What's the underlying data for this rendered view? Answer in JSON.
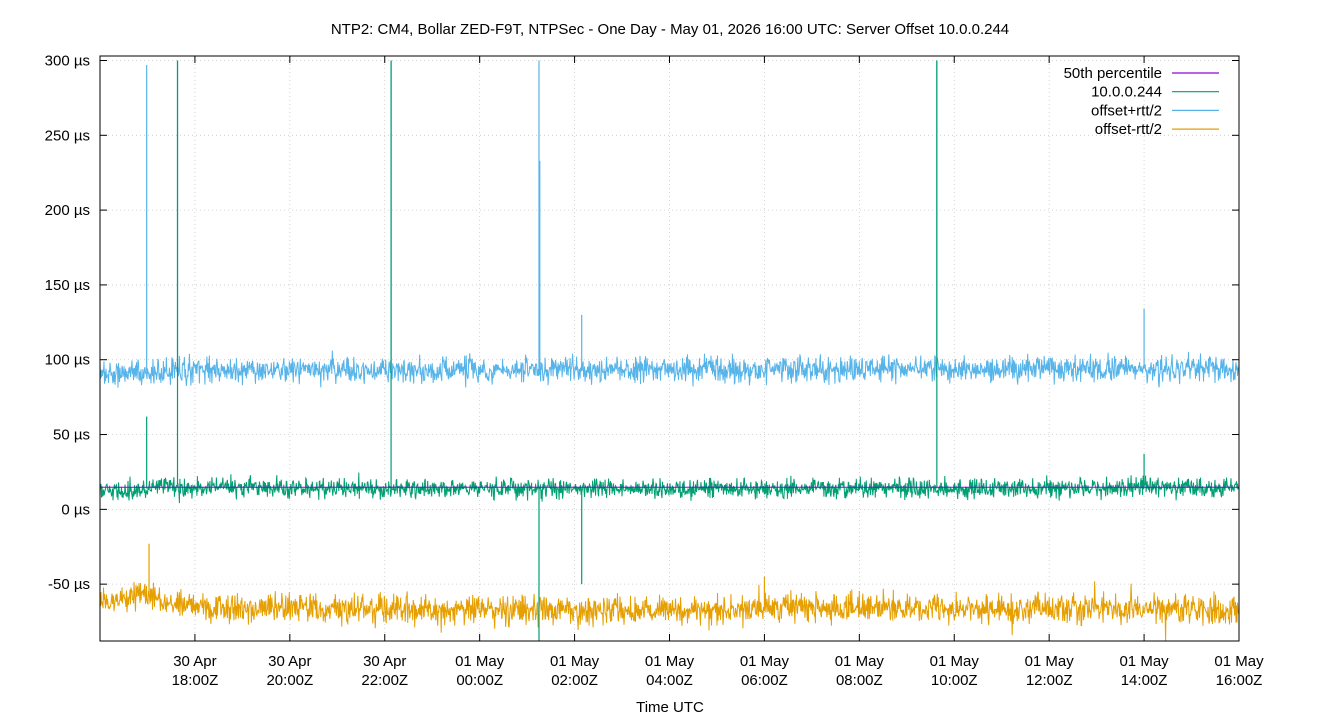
{
  "chart_data": {
    "type": "line",
    "title": "NTP2: CM4, Bollar ZED-F9T, NTPSec - One Day - May 01, 2026 16:00 UTC: Server Offset 10.0.0.244",
    "xlabel": "Time UTC",
    "ylabel": "",
    "y_unit": "µs",
    "x_range": [
      "2026-04-30T16:00Z",
      "2026-05-01T16:00Z"
    ],
    "ylim": [
      -88,
      303
    ],
    "grid": true,
    "legend_position": "top-right",
    "y_ticks": [
      {
        "value": 300,
        "label": "300 µs"
      },
      {
        "value": 250,
        "label": "250 µs"
      },
      {
        "value": 200,
        "label": "200 µs"
      },
      {
        "value": 150,
        "label": "150 µs"
      },
      {
        "value": 100,
        "label": "100 µs"
      },
      {
        "value": 50,
        "label": "50 µs"
      },
      {
        "value": 0,
        "label": "0 µs"
      },
      {
        "value": -50,
        "label": "-50 µs"
      }
    ],
    "x_ticks": [
      {
        "value": "2026-04-30T18:00Z",
        "line1": "30 Apr",
        "line2": "18:00Z"
      },
      {
        "value": "2026-04-30T20:00Z",
        "line1": "30 Apr",
        "line2": "20:00Z"
      },
      {
        "value": "2026-04-30T22:00Z",
        "line1": "30 Apr",
        "line2": "22:00Z"
      },
      {
        "value": "2026-05-01T00:00Z",
        "line1": "01 May",
        "line2": "00:00Z"
      },
      {
        "value": "2026-05-01T02:00Z",
        "line1": "01 May",
        "line2": "02:00Z"
      },
      {
        "value": "2026-05-01T04:00Z",
        "line1": "01 May",
        "line2": "04:00Z"
      },
      {
        "value": "2026-05-01T06:00Z",
        "line1": "01 May",
        "line2": "06:00Z"
      },
      {
        "value": "2026-05-01T08:00Z",
        "line1": "01 May",
        "line2": "08:00Z"
      },
      {
        "value": "2026-05-01T10:00Z",
        "line1": "01 May",
        "line2": "10:00Z"
      },
      {
        "value": "2026-05-01T12:00Z",
        "line1": "01 May",
        "line2": "12:00Z"
      },
      {
        "value": "2026-05-01T14:00Z",
        "line1": "01 May",
        "line2": "14:00Z"
      },
      {
        "value": "2026-05-01T16:00Z",
        "line1": "01 May",
        "line2": "16:00Z"
      }
    ],
    "series": [
      {
        "name": "50th percentile",
        "color": "#9400d3",
        "style": "flat",
        "values": [
          {
            "x": "2026-04-30T16:00Z",
            "y": 14.8
          },
          {
            "x": "2026-05-01T16:00Z",
            "y": 14.8
          }
        ]
      },
      {
        "name": "10.0.0.244",
        "color": "#009e73",
        "style": "noisy",
        "baseline": [
          {
            "x": "2026-04-30T16:00Z",
            "y": 12
          },
          {
            "x": "2026-04-30T17:30Z",
            "y": 15
          },
          {
            "x": "2026-04-30T22:00Z",
            "y": 14
          },
          {
            "x": "2026-05-01T04:00Z",
            "y": 14
          },
          {
            "x": "2026-05-01T10:00Z",
            "y": 14
          },
          {
            "x": "2026-05-01T16:00Z",
            "y": 15
          }
        ],
        "noise_amplitude": 6,
        "spikes": [
          {
            "x": "2026-04-30T16:59Z",
            "y": 62
          },
          {
            "x": "2026-04-30T17:38Z",
            "y": 300
          },
          {
            "x": "2026-04-30T22:08Z",
            "y": 300
          },
          {
            "x": "2026-05-01T01:15Z",
            "y": -88
          },
          {
            "x": "2026-05-01T02:09Z",
            "y": -50
          },
          {
            "x": "2026-05-01T09:38Z",
            "y": 300
          },
          {
            "x": "2026-05-01T14:00Z",
            "y": 37
          }
        ]
      },
      {
        "name": "offset+rtt/2",
        "color": "#56b4e9",
        "style": "noisy",
        "baseline": [
          {
            "x": "2026-04-30T16:00Z",
            "y": 91
          },
          {
            "x": "2026-04-30T18:00Z",
            "y": 93
          },
          {
            "x": "2026-05-01T00:00Z",
            "y": 93
          },
          {
            "x": "2026-05-01T08:00Z",
            "y": 94
          },
          {
            "x": "2026-05-01T16:00Z",
            "y": 94
          }
        ],
        "noise_amplitude": 8,
        "spikes": [
          {
            "x": "2026-04-30T16:59Z",
            "y": 297
          },
          {
            "x": "2026-04-30T17:38Z",
            "y": 300
          },
          {
            "x": "2026-04-30T22:08Z",
            "y": 300
          },
          {
            "x": "2026-05-01T01:15Z",
            "y": 300
          },
          {
            "x": "2026-05-01T01:16Z",
            "y": 233
          },
          {
            "x": "2026-05-01T02:09Z",
            "y": 130
          },
          {
            "x": "2026-05-01T09:38Z",
            "y": 300
          },
          {
            "x": "2026-05-01T14:00Z",
            "y": 134
          }
        ]
      },
      {
        "name": "offset-rtt/2",
        "color": "#e69f00",
        "style": "noisy",
        "baseline": [
          {
            "x": "2026-04-30T16:00Z",
            "y": -63
          },
          {
            "x": "2026-04-30T17:00Z",
            "y": -56
          },
          {
            "x": "2026-04-30T17:45Z",
            "y": -65
          },
          {
            "x": "2026-05-01T00:00Z",
            "y": -68
          },
          {
            "x": "2026-05-01T08:00Z",
            "y": -66
          },
          {
            "x": "2026-05-01T16:00Z",
            "y": -67
          }
        ],
        "noise_amplitude": 9,
        "spikes": [
          {
            "x": "2026-04-30T17:02Z",
            "y": -23
          },
          {
            "x": "2026-05-01T06:00Z",
            "y": -45
          }
        ]
      }
    ]
  }
}
